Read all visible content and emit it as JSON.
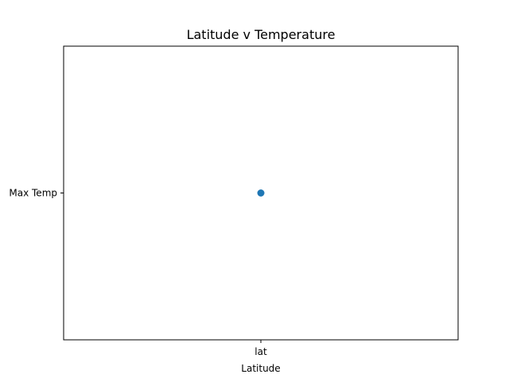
{
  "chart_data": {
    "type": "scatter",
    "title": "Latitude v Temperature",
    "xlabel": "Latitude",
    "ylabel": "",
    "x_categories": [
      "lat"
    ],
    "y_categories": [
      "Max Temp"
    ],
    "points": [
      {
        "x": "lat",
        "y": "Max Temp"
      }
    ],
    "grid": false,
    "legend": "none",
    "colors": {
      "marker": "#1f77b4",
      "axes": "#000000"
    }
  }
}
